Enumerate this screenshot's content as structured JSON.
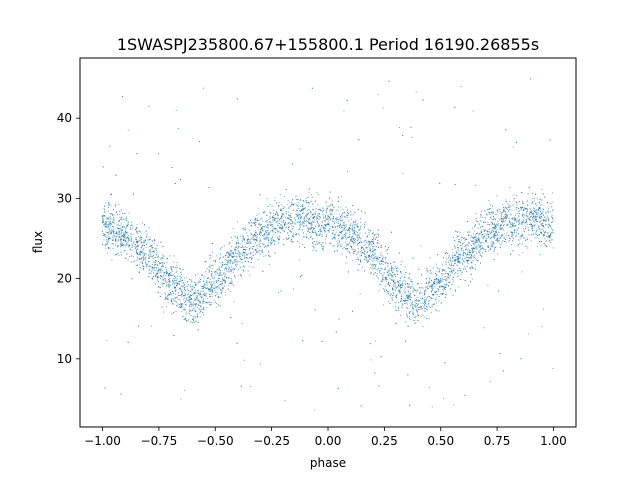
{
  "chart_data": {
    "type": "scatter",
    "title": "1SWASPJ235800.67+155800.1 Period 16190.26855s",
    "xlabel": "phase",
    "ylabel": "flux",
    "xlim": [
      -1.1,
      1.1
    ],
    "ylim": [
      1.5,
      47.5
    ],
    "x_ticks": [
      -1.0,
      -0.75,
      -0.5,
      -0.25,
      0.0,
      0.25,
      0.5,
      0.75,
      1.0
    ],
    "x_tick_labels": [
      "−1.00",
      "−0.75",
      "−0.50",
      "−0.25",
      "0.00",
      "0.25",
      "0.50",
      "0.75",
      "1.00"
    ],
    "y_ticks": [
      10,
      20,
      30,
      40
    ],
    "y_tick_labels": [
      "10",
      "20",
      "30",
      "40"
    ],
    "grid": false,
    "legend": "none",
    "marker_color": "#1f77b4",
    "series": [
      {
        "profile": {
          "phase": [
            -1.0,
            -0.9,
            -0.8,
            -0.7,
            -0.6,
            -0.5,
            -0.4,
            -0.3,
            -0.2,
            -0.1,
            0.0,
            0.1,
            0.2,
            0.3,
            0.4,
            0.5,
            0.6,
            0.7,
            0.8,
            0.9,
            1.0
          ],
          "flux": [
            26.5,
            25.5,
            23.0,
            19.5,
            17.0,
            19.5,
            23.0,
            25.5,
            27.0,
            27.5,
            26.5,
            25.5,
            23.0,
            19.5,
            17.0,
            19.5,
            23.0,
            25.5,
            27.0,
            27.5,
            26.5
          ]
        },
        "scatter_band": 1.5,
        "outlier_range": [
          3.5,
          45
        ]
      }
    ]
  }
}
